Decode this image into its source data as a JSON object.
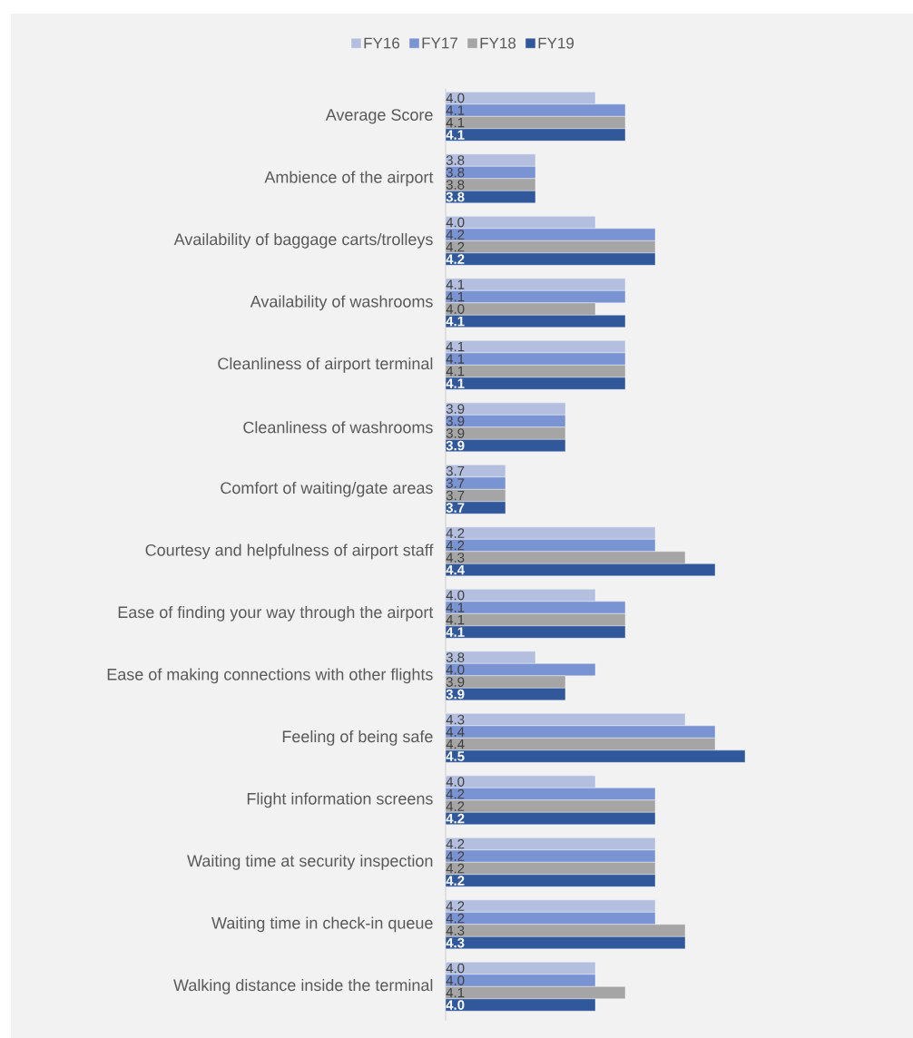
{
  "chart_data": {
    "type": "bar",
    "orientation": "horizontal",
    "legend": "top",
    "xlim": [
      3.5,
      4.5
    ],
    "categories": [
      "Average Score",
      "Ambience of the airport",
      "Availability of baggage carts/trolleys",
      "Availability of washrooms",
      "Cleanliness of airport terminal",
      "Cleanliness of washrooms",
      "Comfort of waiting/gate areas",
      "Courtesy and helpfulness of airport staff",
      "Ease of finding your way through the airport",
      "Ease of making connections with other flights",
      "Feeling of being safe",
      "Flight information screens",
      "Waiting time at security inspection",
      "Waiting time in check-in queue",
      "Walking distance inside the terminal"
    ],
    "series": [
      {
        "name": "FY16",
        "color": "#b4bfe0",
        "values": [
          4.0,
          3.8,
          4.0,
          4.1,
          4.1,
          3.9,
          3.7,
          4.2,
          4.0,
          3.8,
          4.3,
          4.0,
          4.2,
          4.2,
          4.0
        ],
        "value_labels": [
          "4.0",
          "3.8",
          "4.0",
          "4.1",
          "4.1",
          "3.9",
          "3.7",
          "4.2",
          "4.0",
          "3.8",
          "4.3",
          "4.0",
          "4.2",
          "4.2",
          "4.0"
        ]
      },
      {
        "name": "FY17",
        "color": "#7a93d2",
        "values": [
          4.1,
          3.8,
          4.2,
          4.1,
          4.1,
          3.9,
          3.7,
          4.2,
          4.1,
          4.0,
          4.4,
          4.2,
          4.2,
          4.2,
          4.0
        ],
        "value_labels": [
          "4.1",
          "3.8",
          "4.2",
          "4.1",
          "4.1",
          "3.9",
          "3.7",
          "4.2",
          "4.1",
          "4.0",
          "4.4",
          "4.2",
          "4.2",
          "4.2",
          "4.0"
        ]
      },
      {
        "name": "FY18",
        "color": "#a5a5a5",
        "values": [
          4.1,
          3.8,
          4.2,
          4.0,
          4.1,
          3.9,
          3.7,
          4.3,
          4.1,
          3.9,
          4.4,
          4.2,
          4.2,
          4.3,
          4.1
        ],
        "value_labels": [
          "4.1",
          "3.8",
          "4.2",
          "4.0",
          "4.1",
          "3.9",
          "3.7",
          "4.3",
          "4.1",
          "3.9",
          "4.4",
          "4.2",
          "4.2",
          "4.3",
          "4.1"
        ]
      },
      {
        "name": "FY19",
        "color": "#31589a",
        "values": [
          4.1,
          3.8,
          4.2,
          4.1,
          4.1,
          3.9,
          3.7,
          4.4,
          4.1,
          3.9,
          4.5,
          4.2,
          4.2,
          4.3,
          4.0
        ],
        "value_labels": [
          "4.1",
          "3.8",
          "4.2",
          "4.1",
          "4.1",
          "3.9",
          "3.7",
          "4.4",
          "4.1",
          "3.9",
          "4.5",
          "4.2",
          "4.2",
          "4.3",
          "4.0"
        ]
      }
    ]
  }
}
